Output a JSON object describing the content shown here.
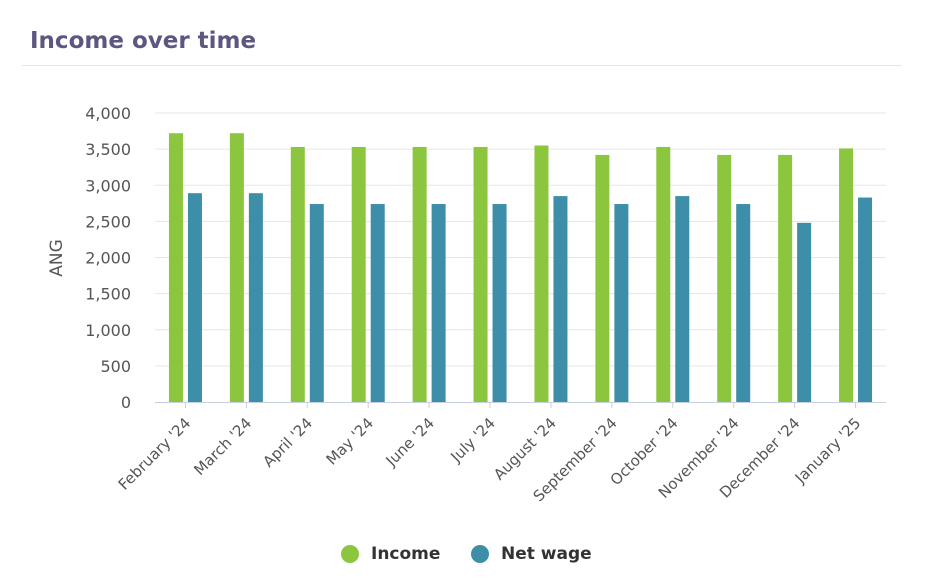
{
  "header": {
    "title": "Income over time"
  },
  "chart_data": {
    "type": "bar",
    "title": "Income over time",
    "xlabel": "",
    "ylabel": "ANG",
    "ylim": [
      0,
      4000
    ],
    "yticks": [
      "0",
      "500",
      "1,000",
      "1,500",
      "2,000",
      "2,500",
      "3,000",
      "3,500",
      "4,000"
    ],
    "grid": true,
    "legend_position": "bottom-center",
    "categories": [
      "February '24",
      "March '24",
      "April '24",
      "May '24",
      "June '24",
      "July '24",
      "August '24",
      "September '24",
      "October '24",
      "November '24",
      "December '24",
      "January '25"
    ],
    "series": [
      {
        "name": "Income",
        "color": "#8cc63f",
        "values": [
          3720,
          3720,
          3530,
          3530,
          3530,
          3530,
          3550,
          3420,
          3530,
          3420,
          3420,
          3510
        ]
      },
      {
        "name": "Net wage",
        "color": "#3d8ea8",
        "values": [
          2890,
          2890,
          2740,
          2740,
          2740,
          2740,
          2850,
          2740,
          2850,
          2740,
          2480,
          2830
        ]
      }
    ]
  }
}
